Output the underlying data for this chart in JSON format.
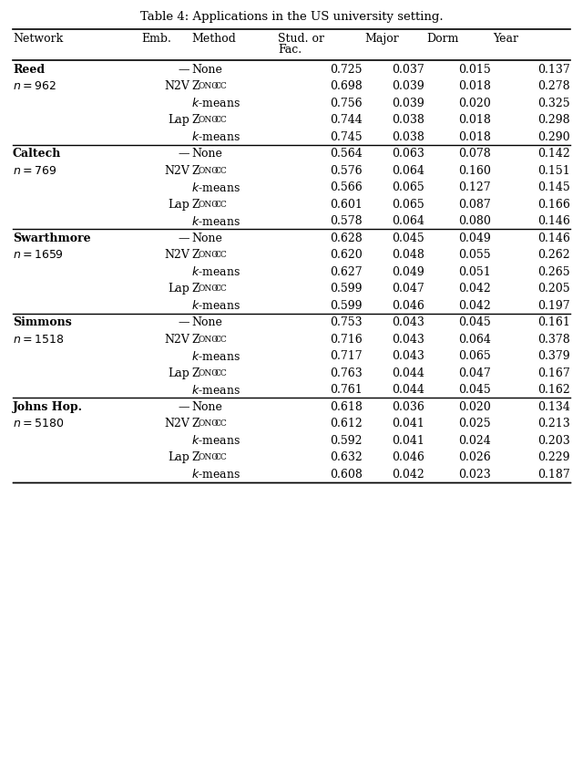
{
  "title": "Table 4: Applications in the US university setting.",
  "rows": [
    [
      "Reed",
      "",
      "—",
      "None",
      "0.725",
      "0.037",
      "0.015",
      "0.137",
      true,
      true
    ],
    [
      "",
      "n = 962",
      "N2V",
      "ZonoCC",
      "0.698",
      "0.039",
      "0.018",
      "0.278",
      false,
      false
    ],
    [
      "",
      "",
      "",
      "k-means",
      "0.756",
      "0.039",
      "0.020",
      "0.325",
      false,
      false
    ],
    [
      "",
      "",
      "Lap",
      "ZonoCC",
      "0.744",
      "0.038",
      "0.018",
      "0.298",
      false,
      false
    ],
    [
      "",
      "",
      "",
      "k-means",
      "0.745",
      "0.038",
      "0.018",
      "0.290",
      false,
      false
    ],
    [
      "Caltech",
      "",
      "—",
      "None",
      "0.564",
      "0.063",
      "0.078",
      "0.142",
      true,
      true
    ],
    [
      "",
      "n = 769",
      "N2V",
      "ZonoCC",
      "0.576",
      "0.064",
      "0.160",
      "0.151",
      false,
      false
    ],
    [
      "",
      "",
      "",
      "k-means",
      "0.566",
      "0.065",
      "0.127",
      "0.145",
      false,
      false
    ],
    [
      "",
      "",
      "Lap",
      "ZonoCC",
      "0.601",
      "0.065",
      "0.087",
      "0.166",
      false,
      false
    ],
    [
      "",
      "",
      "",
      "k-means",
      "0.578",
      "0.064",
      "0.080",
      "0.146",
      false,
      false
    ],
    [
      "Swarthmore",
      "",
      "—",
      "None",
      "0.628",
      "0.045",
      "0.049",
      "0.146",
      true,
      true
    ],
    [
      "",
      "n = 1659",
      "N2V",
      "ZonoCC",
      "0.620",
      "0.048",
      "0.055",
      "0.262",
      false,
      false
    ],
    [
      "",
      "",
      "",
      "k-means",
      "0.627",
      "0.049",
      "0.051",
      "0.265",
      false,
      false
    ],
    [
      "",
      "",
      "Lap",
      "ZonoCC",
      "0.599",
      "0.047",
      "0.042",
      "0.205",
      false,
      false
    ],
    [
      "",
      "",
      "",
      "k-means",
      "0.599",
      "0.046",
      "0.042",
      "0.197",
      false,
      false
    ],
    [
      "Simmons",
      "",
      "—",
      "None",
      "0.753",
      "0.043",
      "0.045",
      "0.161",
      true,
      true
    ],
    [
      "",
      "n = 1518",
      "N2V",
      "ZonoCC",
      "0.716",
      "0.043",
      "0.064",
      "0.378",
      false,
      false
    ],
    [
      "",
      "",
      "",
      "k-means",
      "0.717",
      "0.043",
      "0.065",
      "0.379",
      false,
      false
    ],
    [
      "",
      "",
      "Lap",
      "ZonoCC",
      "0.763",
      "0.044",
      "0.047",
      "0.167",
      false,
      false
    ],
    [
      "",
      "",
      "",
      "k-means",
      "0.761",
      "0.044",
      "0.045",
      "0.162",
      false,
      false
    ],
    [
      "Johns Hop.",
      "",
      "—",
      "None",
      "0.618",
      "0.036",
      "0.020",
      "0.134",
      true,
      true
    ],
    [
      "",
      "n = 5180",
      "N2V",
      "ZonoCC",
      "0.612",
      "0.041",
      "0.025",
      "0.213",
      false,
      false
    ],
    [
      "",
      "",
      "",
      "k-means",
      "0.592",
      "0.041",
      "0.024",
      "0.203",
      false,
      false
    ],
    [
      "",
      "",
      "Lap",
      "ZonoCC",
      "0.632",
      "0.046",
      "0.026",
      "0.229",
      false,
      false
    ],
    [
      "",
      "",
      "",
      "k-means",
      "0.608",
      "0.042",
      "0.023",
      "0.187",
      false,
      false
    ]
  ],
  "section_end_rows": [
    4,
    9,
    14,
    19,
    24
  ],
  "font_size": 9.0,
  "title_font_size": 9.5
}
